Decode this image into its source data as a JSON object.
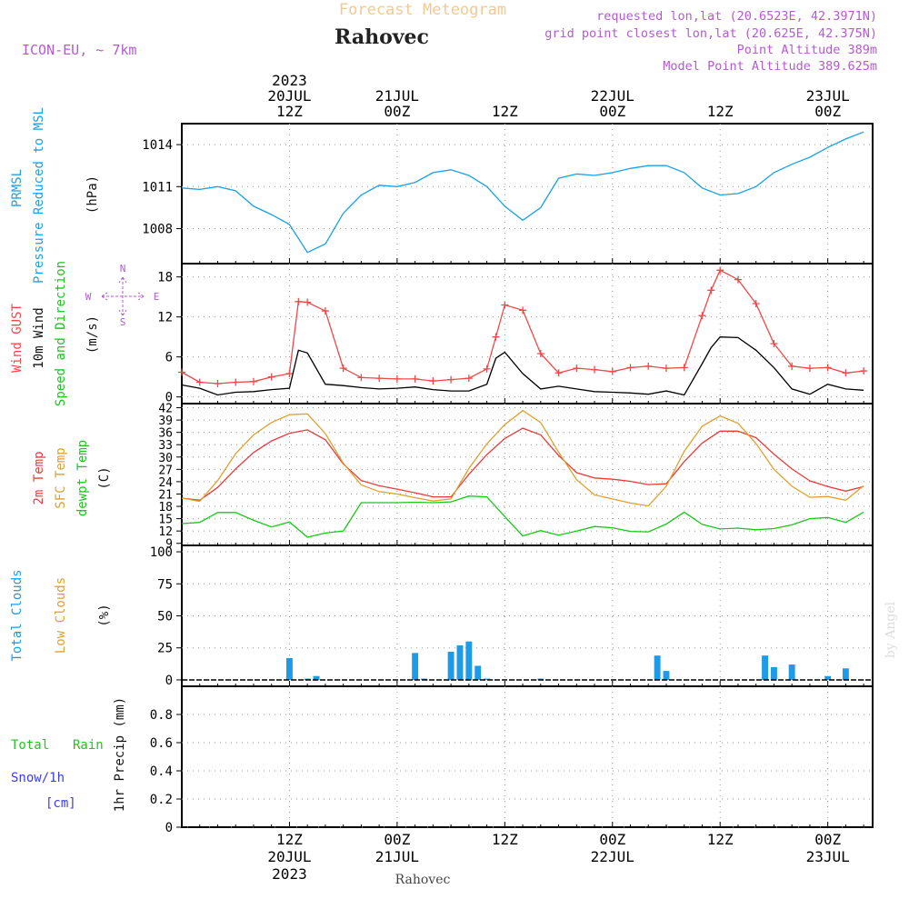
{
  "header": {
    "title": "Forecast Meteogram",
    "location": "Rahovec",
    "model": "ICON-EU, ~ 7km",
    "requested": "requested lon,lat (20.6523E, 42.3971N)",
    "grid_point": "grid point closest lon,lat (20.625E, 42.375N)",
    "point_altitude": "Point Altitude 389m",
    "model_altitude": "Model Point Altitude 389.625m",
    "footer_location": "Rahovec",
    "watermark": "by Angel"
  },
  "time_axis": {
    "top_labels": [
      {
        "hour": 12,
        "lines": [
          "2023",
          "20JUL",
          "12Z"
        ]
      },
      {
        "hour": 24,
        "lines": [
          "21JUL",
          "00Z"
        ]
      },
      {
        "hour": 36,
        "lines": [
          "12Z"
        ]
      },
      {
        "hour": 48,
        "lines": [
          "22JUL",
          "00Z"
        ]
      },
      {
        "hour": 60,
        "lines": [
          "12Z"
        ]
      },
      {
        "hour": 72,
        "lines": [
          "23JUL",
          "00Z"
        ]
      }
    ],
    "bottom_labels": [
      {
        "hour": 12,
        "lines": [
          "12Z",
          "20JUL",
          "2023"
        ]
      },
      {
        "hour": 24,
        "lines": [
          "00Z",
          "21JUL"
        ]
      },
      {
        "hour": 36,
        "lines": [
          "12Z"
        ]
      },
      {
        "hour": 48,
        "lines": [
          "00Z",
          "22JUL"
        ]
      },
      {
        "hour": 60,
        "lines": [
          "12Z"
        ]
      },
      {
        "hour": 72,
        "lines": [
          "00Z",
          "23JUL"
        ]
      }
    ]
  },
  "panel_labels": {
    "prmsl_a": "PRMSL",
    "prmsl_b": "Pressure Reduced to MSL",
    "prmsl_unit": "(hPa)",
    "wind_gust": "Wind GUST",
    "wind_10m": "10m Wind",
    "wind_dir": "Speed and Direction",
    "wind_unit": "(m/s)",
    "compass_n": "N",
    "compass_s": "S",
    "compass_w": "W",
    "compass_e": "E",
    "temp_2m": "2m Temp",
    "temp_sfc": "SFC Temp",
    "temp_dew": "dewpt Temp",
    "temp_unit": "(C)",
    "clouds_total": "Total Clouds",
    "clouds_low": "Low Clouds",
    "clouds_unit": "(%)",
    "rain_total": "Total",
    "rain_rain": "Rain",
    "rain_snow": "Snow/1h",
    "rain_cm": "[cm]",
    "rain_unit": "1hr Precip (mm)"
  },
  "colors": {
    "pressure": "#1aa0e6",
    "gust": "#f04848",
    "wind": "#000000",
    "temp2m": "#e83c3c",
    "sfc": "#e0a030",
    "dew": "#19c819",
    "clouds": "#1e9be8",
    "low_clouds": "#e0a030",
    "title": "#f4c890",
    "purple": "#b45ad2",
    "rain_green": "#22c422",
    "snow_blue": "#3c3cf0"
  },
  "chart_data": [
    {
      "type": "line",
      "name": "pressure",
      "title": "PRMSL Pressure Reduced to MSL",
      "ylabel": "(hPa)",
      "ylim": [
        1005.5,
        1015.5
      ],
      "yticks": [
        1008,
        1011,
        1014
      ],
      "hours": [
        0,
        2,
        4,
        6,
        8,
        10,
        12,
        14,
        16,
        18,
        20,
        22,
        24,
        26,
        28,
        30,
        32,
        34,
        36,
        38,
        40,
        42,
        44,
        46,
        48,
        50,
        52,
        54,
        56,
        58,
        60,
        62,
        64,
        66,
        68,
        70,
        72,
        74,
        76
      ],
      "series": [
        {
          "name": "PRMSL",
          "color": "#1aa0e6",
          "values": [
            1010.9,
            1010.8,
            1011.0,
            1010.7,
            1009.6,
            1009.0,
            1008.3,
            1006.3,
            1006.9,
            1009.1,
            1010.4,
            1011.1,
            1011.0,
            1011.3,
            1012.0,
            1012.2,
            1011.8,
            1011.0,
            1009.6,
            1008.6,
            1009.5,
            1011.6,
            1011.9,
            1011.8,
            1012.0,
            1012.3,
            1012.5,
            1012.5,
            1012.0,
            1010.9,
            1010.4,
            1010.5,
            1011.0,
            1012.0,
            1012.6,
            1013.1,
            1013.8,
            1014.4,
            1014.9
          ]
        }
      ]
    },
    {
      "type": "line",
      "name": "wind",
      "title": "Wind GUST / 10m Wind Speed and Direction",
      "ylabel": "(m/s)",
      "ylim": [
        -1,
        20
      ],
      "yticks": [
        0,
        6,
        12,
        18
      ],
      "hours": [
        0,
        2,
        4,
        6,
        8,
        10,
        12,
        13,
        14,
        16,
        18,
        20,
        22,
        24,
        26,
        28,
        30,
        32,
        34,
        35,
        36,
        38,
        40,
        42,
        44,
        46,
        48,
        50,
        52,
        54,
        56,
        58,
        59,
        60,
        62,
        64,
        66,
        68,
        70,
        72,
        74,
        76
      ],
      "series": [
        {
          "name": "Wind GUST",
          "color": "#f04848",
          "marker": "+",
          "values": [
            3.7,
            2.2,
            2.0,
            2.2,
            2.3,
            3.0,
            3.5,
            14.3,
            14.2,
            12.9,
            4.3,
            2.9,
            2.8,
            2.7,
            2.7,
            2.4,
            2.6,
            2.8,
            4.2,
            9.0,
            13.8,
            13.0,
            6.5,
            3.6,
            4.3,
            4.1,
            3.8,
            4.4,
            4.6,
            4.3,
            4.4,
            12.2,
            16.0,
            19.0,
            17.6,
            14.0,
            8.0,
            4.6,
            4.3,
            4.4,
            3.6,
            3.9
          ]
        },
        {
          "name": "10m Wind",
          "color": "#000000",
          "values": [
            1.8,
            1.3,
            0.3,
            0.7,
            0.8,
            1.1,
            1.3,
            7.0,
            6.6,
            1.9,
            1.7,
            1.4,
            1.2,
            1.3,
            1.5,
            1.1,
            0.9,
            0.9,
            1.9,
            5.8,
            6.7,
            3.5,
            1.2,
            1.6,
            1.2,
            0.8,
            0.7,
            0.6,
            0.4,
            0.9,
            0.3,
            5.0,
            7.4,
            9.0,
            8.9,
            7.0,
            4.4,
            1.2,
            0.4,
            1.9,
            1.2,
            1.0
          ]
        }
      ]
    },
    {
      "type": "line",
      "name": "temperature",
      "title": "2m Temp / SFC Temp / dewpt Temp",
      "ylabel": "(C)",
      "ylim": [
        8.5,
        43
      ],
      "yticks": [
        9,
        12,
        15,
        18,
        21,
        24,
        27,
        30,
        33,
        36,
        39,
        42
      ],
      "hours": [
        0,
        2,
        4,
        6,
        8,
        10,
        12,
        14,
        16,
        18,
        20,
        22,
        24,
        26,
        28,
        30,
        32,
        34,
        36,
        38,
        40,
        42,
        44,
        46,
        48,
        50,
        52,
        54,
        56,
        58,
        60,
        62,
        64,
        66,
        68,
        70,
        72,
        74,
        76
      ],
      "series": [
        {
          "name": "2m Temp",
          "color": "#e83c3c",
          "values": [
            20.0,
            19.5,
            22.6,
            27.1,
            31.1,
            33.9,
            35.8,
            36.6,
            34.2,
            28.3,
            24.3,
            23.0,
            22.2,
            21.3,
            20.3,
            20.3,
            25.8,
            30.6,
            34.5,
            37.0,
            35.4,
            30.4,
            26.2,
            24.9,
            24.6,
            24.1,
            23.3,
            23.5,
            28.9,
            33.4,
            36.3,
            36.3,
            34.7,
            30.7,
            27.1,
            24.2,
            22.8,
            21.7,
            22.8
          ]
        },
        {
          "name": "SFC Temp",
          "color": "#e0a030",
          "values": [
            20.0,
            19.2,
            24.3,
            30.8,
            35.4,
            38.4,
            40.3,
            40.5,
            35.7,
            28.5,
            23.2,
            21.6,
            21.0,
            20.1,
            19.3,
            19.8,
            27.2,
            33.2,
            37.9,
            41.3,
            38.4,
            31.2,
            24.5,
            20.8,
            19.8,
            18.8,
            18.1,
            22.9,
            31.4,
            37.5,
            40.0,
            38.2,
            33.3,
            27.0,
            22.9,
            20.2,
            20.4,
            19.5,
            23.0
          ]
        },
        {
          "name": "dewpt Temp",
          "color": "#19c819",
          "values": [
            13.8,
            14.1,
            16.5,
            16.5,
            14.6,
            13.0,
            14.2,
            10.5,
            11.5,
            12.0,
            18.9,
            18.9,
            18.9,
            19.0,
            18.9,
            19.1,
            20.5,
            20.3,
            15.5,
            10.8,
            12.1,
            11.0,
            12.0,
            13.1,
            12.8,
            11.9,
            11.8,
            13.7,
            16.6,
            13.6,
            12.5,
            12.7,
            12.3,
            12.6,
            13.5,
            15.0,
            15.3,
            14.1,
            16.6
          ]
        }
      ]
    },
    {
      "type": "bar",
      "name": "clouds",
      "title": "Total Clouds / Low Clouds",
      "ylabel": "(%)",
      "ylim": [
        -5,
        105
      ],
      "yticks": [
        0,
        25,
        50,
        75,
        100
      ],
      "hours": [
        12,
        14,
        15,
        26,
        27,
        30,
        31,
        32,
        33,
        34,
        40,
        53,
        54,
        65,
        66,
        68,
        72,
        74
      ],
      "series": [
        {
          "name": "Total Clouds",
          "color": "#1e9be8",
          "values": [
            17,
            1,
            3,
            21,
            1,
            22,
            27,
            30,
            11,
            1,
            1,
            19,
            7,
            19,
            10,
            12,
            3,
            9
          ]
        },
        {
          "name": "Low Clouds",
          "color": "#e0a030",
          "values": [
            0,
            0,
            0,
            0,
            0,
            0,
            0,
            0,
            0,
            0,
            0,
            0,
            0,
            0,
            0,
            0,
            0,
            0
          ]
        }
      ]
    },
    {
      "type": "bar",
      "name": "precip",
      "title": "Total Rain / Snow per hour",
      "ylabel": "1hr Precip (mm)",
      "ylim": [
        0,
        1.0
      ],
      "yticks": [
        0,
        0.2,
        0.4,
        0.6,
        0.8
      ],
      "ytick_labels": [
        "0",
        "0.2",
        "0.4",
        "0.6",
        "0.8"
      ],
      "hours": [],
      "series": [
        {
          "name": "Total Rain",
          "color": "#22c422",
          "values": []
        },
        {
          "name": "Snow/1h",
          "color": "#3c3cf0",
          "values": []
        }
      ]
    }
  ]
}
